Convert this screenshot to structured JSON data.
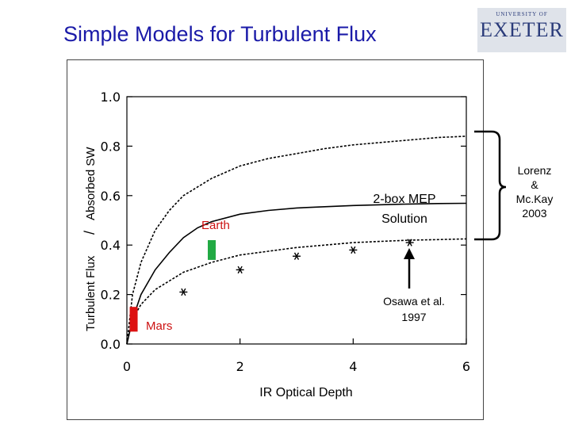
{
  "slide": {
    "title": "Simple Models for Turbulent Flux",
    "logo": {
      "small_text": "UNIVERSITY OF",
      "big_text": "EXETER"
    }
  },
  "chart_data": {
    "type": "line",
    "title": "",
    "xlabel": "IR Optical Depth",
    "ylabel": [
      "Turbulent Flux",
      "/",
      "Absorbed SW"
    ],
    "xlim": [
      0,
      6
    ],
    "ylim": [
      0,
      1.0
    ],
    "x_ticks": [
      "0",
      "2",
      "4",
      "6"
    ],
    "y_ticks": [
      "0.0",
      "0.2",
      "0.4",
      "0.6",
      "0.8",
      "1.0"
    ],
    "grid": false,
    "series": [
      {
        "style": "dashed",
        "x": [
          0,
          0.1,
          0.25,
          0.5,
          0.75,
          1,
          1.5,
          2,
          2.5,
          3,
          3.5,
          4,
          4.5,
          5,
          5.5,
          6
        ],
        "y": [
          0,
          0.2,
          0.33,
          0.46,
          0.54,
          0.6,
          0.67,
          0.72,
          0.75,
          0.77,
          0.79,
          0.805,
          0.815,
          0.825,
          0.835,
          0.84
        ]
      },
      {
        "style": "solid",
        "x": [
          0,
          0.1,
          0.25,
          0.5,
          0.75,
          1,
          1.25,
          1.5,
          2,
          2.5,
          3,
          3.5,
          4,
          4.5,
          5,
          5.5,
          6
        ],
        "y": [
          0,
          0.1,
          0.2,
          0.3,
          0.37,
          0.43,
          0.47,
          0.495,
          0.525,
          0.54,
          0.55,
          0.555,
          0.56,
          0.563,
          0.566,
          0.568,
          0.569
        ]
      },
      {
        "style": "dashed-markers",
        "x": [
          0,
          0.1,
          0.25,
          0.5,
          1,
          1.5,
          2,
          2.5,
          3,
          3.5,
          4,
          4.5,
          5,
          5.5,
          6
        ],
        "y": [
          0,
          0.1,
          0.16,
          0.22,
          0.29,
          0.33,
          0.36,
          0.375,
          0.39,
          0.4,
          0.41,
          0.415,
          0.42,
          0.422,
          0.425
        ],
        "markers": {
          "x": [
            1,
            2,
            3,
            4,
            5
          ],
          "y": [
            0.21,
            0.3,
            0.355,
            0.38,
            0.41
          ]
        }
      }
    ],
    "bars": [
      {
        "label": "Earth",
        "color": "#22aa44",
        "x": 1.5,
        "y0": 0.34,
        "y1": 0.42
      },
      {
        "label": "Mars",
        "color": "#dd1111",
        "x": 0.12,
        "y0": 0.05,
        "y1": 0.15
      }
    ],
    "annotations": {
      "mep": [
        "2-box MEP",
        "Solution"
      ],
      "osawa": [
        "Osawa et al.",
        "1997"
      ],
      "lorenz": [
        "Lorenz",
        "&",
        "Mc.Kay",
        "2003"
      ]
    }
  }
}
